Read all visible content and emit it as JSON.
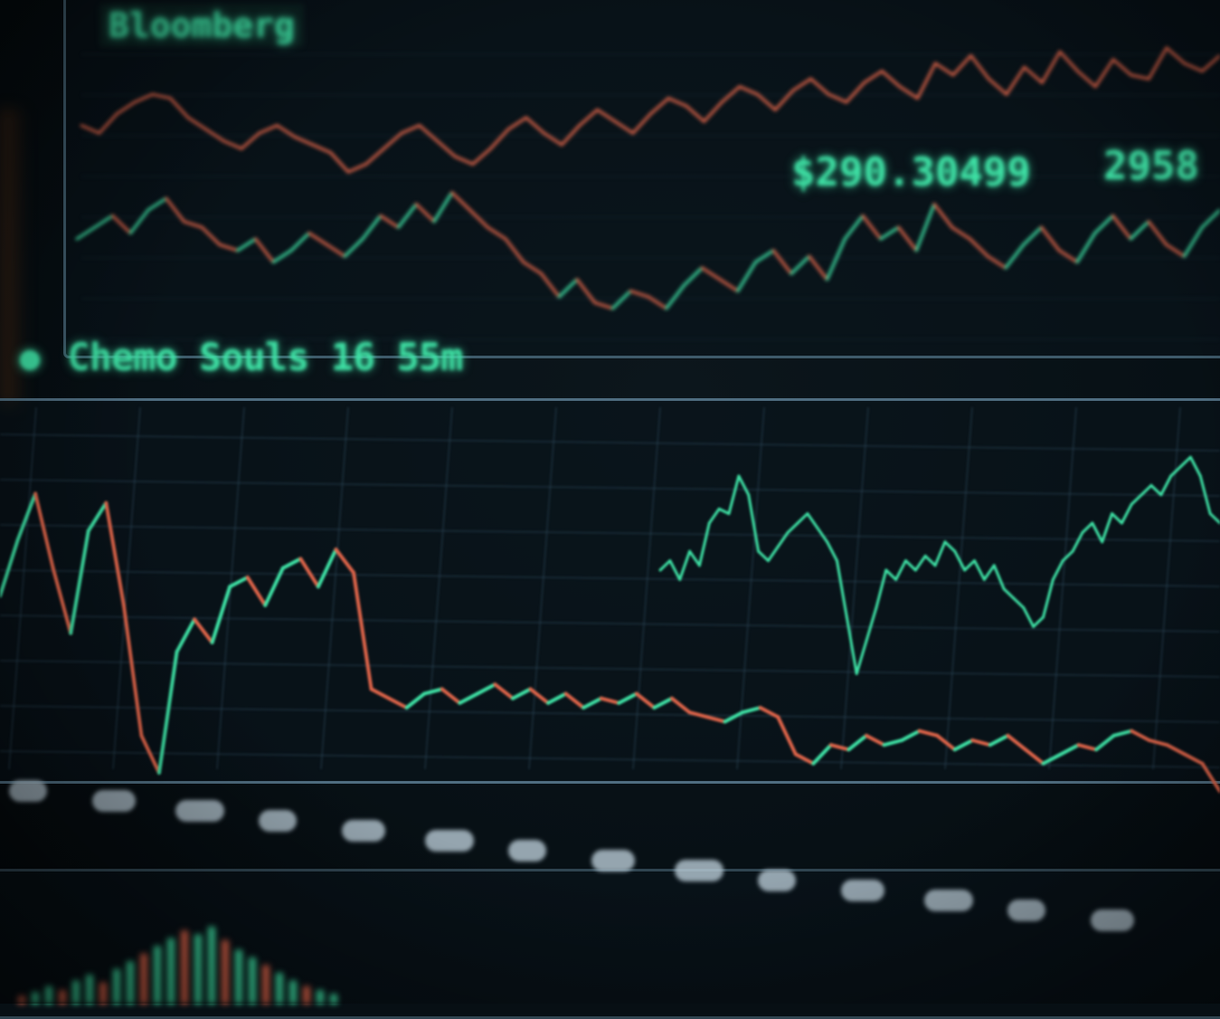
{
  "header": {
    "title": "Bloomberg",
    "price_readout": "$290.30499",
    "price_readout_2": "2958"
  },
  "main": {
    "section_label": "Chemo Souls 16 55m"
  },
  "colors": {
    "up": "#3fe3a6",
    "down": "#e0654a",
    "grid": "#2a4354",
    "frame": "#4e6c7f",
    "background": "#071015"
  },
  "icons": {
    "status": "status-dot-icon"
  },
  "chart_data": [
    {
      "type": "line",
      "title": "",
      "series": [
        {
          "values": [
            72,
            70,
            75,
            78,
            80,
            79,
            74,
            71,
            68,
            66,
            70,
            72,
            69,
            67,
            65,
            60,
            62,
            66,
            70,
            72,
            68,
            64,
            62,
            66,
            71,
            74,
            70,
            67,
            72,
            76,
            73,
            70,
            75,
            79,
            77,
            73,
            78,
            82,
            80,
            76,
            81,
            84,
            80,
            78,
            83,
            86,
            82,
            79,
            88,
            85,
            90,
            84,
            80,
            87,
            83,
            91,
            86,
            82,
            89,
            85,
            84,
            92,
            88,
            86,
            90
          ]
        },
        {
          "values": [
            40,
            42,
            44,
            41,
            45,
            47,
            43,
            42,
            39,
            38,
            40,
            36,
            38,
            41,
            39,
            37,
            40,
            44,
            42,
            46,
            43,
            48,
            45,
            42,
            40,
            36,
            34,
            30,
            33,
            29,
            28,
            31,
            30,
            28,
            32,
            35,
            33,
            31,
            36,
            38,
            34,
            37,
            33,
            40,
            44,
            40,
            42,
            38,
            46,
            42,
            40,
            37,
            35,
            39,
            42,
            38,
            36,
            41,
            44,
            40,
            43,
            39,
            37,
            42,
            45
          ]
        }
      ]
    },
    {
      "type": "line",
      "title": "",
      "series": [
        {
          "values": [
            60,
            72,
            82,
            66,
            52,
            74,
            80,
            58,
            30,
            22,
            48,
            55,
            50,
            62,
            64,
            58,
            66,
            68,
            62,
            70,
            65,
            40,
            38,
            36,
            39,
            40,
            37,
            39,
            41,
            38,
            40,
            37,
            39,
            36,
            38,
            37,
            39,
            36,
            38,
            35,
            34,
            33,
            35,
            36,
            34,
            26,
            24,
            28,
            27,
            30,
            28,
            29,
            31,
            30,
            27,
            29,
            28,
            30,
            27,
            24,
            26,
            28,
            27,
            30,
            31,
            29,
            28,
            26,
            24,
            18
          ]
        },
        {
          "values": [
            60,
            62,
            58,
            64,
            61,
            70,
            73,
            72,
            80,
            76,
            64,
            62,
            65,
            68,
            70,
            72,
            69,
            66,
            62,
            50,
            38,
            45,
            52,
            60,
            58,
            62,
            60,
            63,
            61,
            66,
            64,
            60,
            62,
            58,
            61,
            56,
            54,
            52,
            48,
            50,
            58,
            62,
            64,
            68,
            70,
            66,
            72,
            70,
            74,
            76,
            78,
            76,
            80,
            82,
            84,
            80,
            72,
            70
          ]
        }
      ]
    },
    {
      "type": "bar",
      "title": "",
      "values": [
        4,
        6,
        9,
        7,
        12,
        15,
        11,
        18,
        22,
        26,
        30,
        34,
        38,
        36,
        40,
        33,
        28,
        24,
        20,
        16,
        12,
        9,
        7,
        5
      ]
    }
  ]
}
